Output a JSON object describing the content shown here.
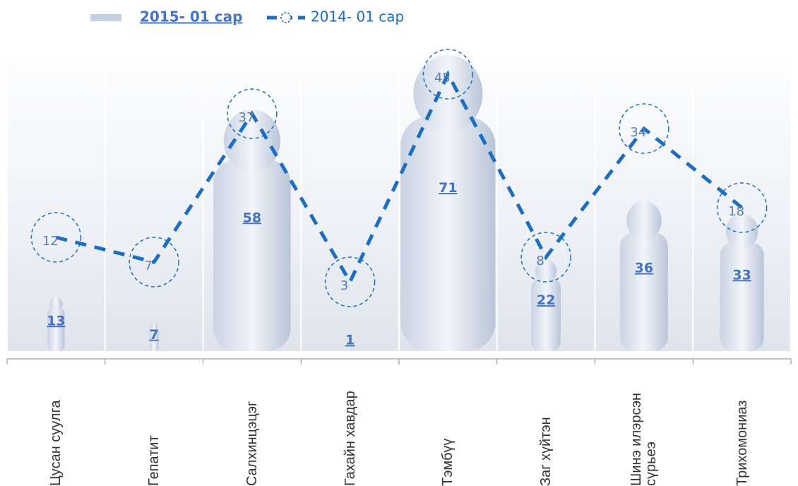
{
  "chart_data": {
    "type": "bar",
    "categories": [
      "Цусан суулга",
      "Гепатит",
      "Салхинцэцэг",
      "Гахайн хавдар",
      "Тэмбүү",
      "Заг хүйтэн",
      "Шинэ илэрсэн сүрьеэ",
      "Трихомониаз"
    ],
    "series": [
      {
        "name": "2015- 01 сар",
        "type": "bar",
        "color": "#4472c4",
        "values": [
          13,
          7,
          58,
          1,
          71,
          22,
          36,
          33
        ]
      },
      {
        "name": "2014- 01 сар",
        "type": "line",
        "color": "#1b6ec2",
        "values": [
          12,
          7,
          37,
          3,
          45,
          8,
          34,
          18
        ]
      }
    ]
  }
}
